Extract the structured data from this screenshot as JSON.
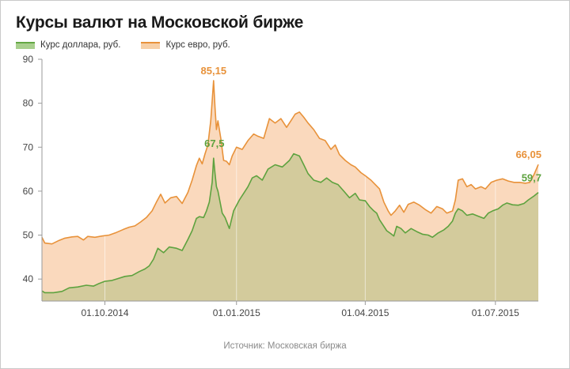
{
  "title": "Курсы валют на Московской бирже",
  "source": "Источник: Московская биржа",
  "colors": {
    "usd_line": "#5ea23f",
    "usd_fill": "#d3cb9c",
    "eur_line": "#e8923a",
    "eur_fill": "#fad9bd",
    "grid": "#e3e3e3",
    "axis": "#9a9a9a"
  },
  "chart_data": {
    "type": "area",
    "title": "Курсы валют на Московской бирже",
    "xlabel": "",
    "ylabel": "",
    "x_range": [
      "2014-08-18",
      "2015-07-31"
    ],
    "ylim": [
      35,
      90
    ],
    "y_ticks": [
      40,
      50,
      60,
      70,
      80,
      90
    ],
    "x_ticks": [
      {
        "date": "2014-10-01",
        "label": "01.10.2014"
      },
      {
        "date": "2015-01-01",
        "label": "01.01.2015"
      },
      {
        "date": "2015-04-01",
        "label": "01.04.2015"
      },
      {
        "date": "2015-07-01",
        "label": "01.07.2015"
      }
    ],
    "grid": "vertical",
    "legend": "top-left",
    "series": [
      {
        "name": "Курс доллара, руб.",
        "color": "#5ea23f",
        "points": [
          [
            "2014-08-18",
            37.3
          ],
          [
            "2014-08-20",
            36.9
          ],
          [
            "2014-08-26",
            36.9
          ],
          [
            "2014-09-01",
            37.2
          ],
          [
            "2014-09-06",
            38.0
          ],
          [
            "2014-09-12",
            38.2
          ],
          [
            "2014-09-18",
            38.6
          ],
          [
            "2014-09-23",
            38.4
          ],
          [
            "2014-09-27",
            39.0
          ],
          [
            "2014-10-01",
            39.5
          ],
          [
            "2014-10-06",
            39.7
          ],
          [
            "2014-10-10",
            40.1
          ],
          [
            "2014-10-15",
            40.6
          ],
          [
            "2014-10-20",
            40.8
          ],
          [
            "2014-10-25",
            41.7
          ],
          [
            "2014-10-29",
            42.3
          ],
          [
            "2014-11-01",
            43.0
          ],
          [
            "2014-11-04",
            44.5
          ],
          [
            "2014-11-07",
            47.0
          ],
          [
            "2014-11-11",
            46.0
          ],
          [
            "2014-11-15",
            47.3
          ],
          [
            "2014-11-20",
            47.0
          ],
          [
            "2014-11-24",
            46.5
          ],
          [
            "2014-11-28",
            49.0
          ],
          [
            "2014-12-01",
            51.0
          ],
          [
            "2014-12-04",
            53.8
          ],
          [
            "2014-12-06",
            54.2
          ],
          [
            "2014-12-09",
            54.0
          ],
          [
            "2014-12-11",
            55.5
          ],
          [
            "2014-12-13",
            57.5
          ],
          [
            "2014-12-15",
            62.0
          ],
          [
            "2014-12-16",
            67.5
          ],
          [
            "2014-12-17",
            64.0
          ],
          [
            "2014-12-18",
            61.0
          ],
          [
            "2014-12-19",
            60.0
          ],
          [
            "2014-12-22",
            55.0
          ],
          [
            "2014-12-24",
            54.0
          ],
          [
            "2014-12-27",
            51.5
          ],
          [
            "2014-12-30",
            55.5
          ],
          [
            "2015-01-03",
            58.0
          ],
          [
            "2015-01-06",
            59.5
          ],
          [
            "2015-01-09",
            61.0
          ],
          [
            "2015-01-12",
            63.0
          ],
          [
            "2015-01-15",
            63.5
          ],
          [
            "2015-01-19",
            62.5
          ],
          [
            "2015-01-23",
            65.0
          ],
          [
            "2015-01-28",
            66.0
          ],
          [
            "2015-02-02",
            65.5
          ],
          [
            "2015-02-07",
            67.0
          ],
          [
            "2015-02-10",
            68.5
          ],
          [
            "2015-02-14",
            68.0
          ],
          [
            "2015-02-17",
            66.0
          ],
          [
            "2015-02-20",
            64.0
          ],
          [
            "2015-02-24",
            62.5
          ],
          [
            "2015-03-01",
            62.0
          ],
          [
            "2015-03-05",
            63.0
          ],
          [
            "2015-03-09",
            62.0
          ],
          [
            "2015-03-13",
            61.5
          ],
          [
            "2015-03-17",
            60.0
          ],
          [
            "2015-03-21",
            58.5
          ],
          [
            "2015-03-25",
            59.5
          ],
          [
            "2015-03-28",
            58.0
          ],
          [
            "2015-04-01",
            57.8
          ],
          [
            "2015-04-04",
            56.5
          ],
          [
            "2015-04-07",
            55.5
          ],
          [
            "2015-04-09",
            55.0
          ],
          [
            "2015-04-11",
            53.5
          ],
          [
            "2015-04-13",
            52.5
          ],
          [
            "2015-04-16",
            51.0
          ],
          [
            "2015-04-19",
            50.3
          ],
          [
            "2015-04-21",
            49.8
          ],
          [
            "2015-04-23",
            52.0
          ],
          [
            "2015-04-26",
            51.5
          ],
          [
            "2015-04-29",
            50.5
          ],
          [
            "2015-05-03",
            51.5
          ],
          [
            "2015-05-07",
            50.8
          ],
          [
            "2015-05-11",
            50.2
          ],
          [
            "2015-05-15",
            50.0
          ],
          [
            "2015-05-18",
            49.5
          ],
          [
            "2015-05-22",
            50.5
          ],
          [
            "2015-05-26",
            51.2
          ],
          [
            "2015-05-29",
            52.0
          ],
          [
            "2015-06-01",
            53.2
          ],
          [
            "2015-06-03",
            55.0
          ],
          [
            "2015-06-05",
            56.0
          ],
          [
            "2015-06-08",
            55.5
          ],
          [
            "2015-06-11",
            54.5
          ],
          [
            "2015-06-15",
            54.8
          ],
          [
            "2015-06-19",
            54.3
          ],
          [
            "2015-06-23",
            53.8
          ],
          [
            "2015-06-26",
            55.0
          ],
          [
            "2015-06-29",
            55.5
          ],
          [
            "2015-07-03",
            56.0
          ],
          [
            "2015-07-06",
            56.8
          ],
          [
            "2015-07-09",
            57.3
          ],
          [
            "2015-07-13",
            56.9
          ],
          [
            "2015-07-17",
            56.8
          ],
          [
            "2015-07-21",
            57.2
          ],
          [
            "2015-07-24",
            58.0
          ],
          [
            "2015-07-28",
            58.9
          ],
          [
            "2015-07-31",
            59.7
          ]
        ]
      },
      {
        "name": "Курс евро, руб.",
        "color": "#e8923a",
        "points": [
          [
            "2014-08-18",
            49.5
          ],
          [
            "2014-08-20",
            48.2
          ],
          [
            "2014-08-25",
            48.0
          ],
          [
            "2014-08-30",
            48.8
          ],
          [
            "2014-09-03",
            49.3
          ],
          [
            "2014-09-08",
            49.6
          ],
          [
            "2014-09-12",
            49.7
          ],
          [
            "2014-09-16",
            48.9
          ],
          [
            "2014-09-19",
            49.7
          ],
          [
            "2014-09-24",
            49.5
          ],
          [
            "2014-09-29",
            49.8
          ],
          [
            "2014-10-04",
            50.0
          ],
          [
            "2014-10-09",
            50.6
          ],
          [
            "2014-10-14",
            51.3
          ],
          [
            "2014-10-18",
            51.8
          ],
          [
            "2014-10-22",
            52.1
          ],
          [
            "2014-10-26",
            53.0
          ],
          [
            "2014-10-30",
            54.0
          ],
          [
            "2014-11-03",
            55.5
          ],
          [
            "2014-11-06",
            57.5
          ],
          [
            "2014-11-09",
            59.3
          ],
          [
            "2014-11-12",
            57.3
          ],
          [
            "2014-11-16",
            58.5
          ],
          [
            "2014-11-20",
            58.8
          ],
          [
            "2014-11-24",
            57.2
          ],
          [
            "2014-11-28",
            59.7
          ],
          [
            "2014-12-01",
            62.5
          ],
          [
            "2014-12-04",
            65.8
          ],
          [
            "2014-12-06",
            67.5
          ],
          [
            "2014-12-08",
            66.2
          ],
          [
            "2014-12-10",
            68.5
          ],
          [
            "2014-12-12",
            70.5
          ],
          [
            "2014-12-14",
            76.0
          ],
          [
            "2014-12-15",
            80.5
          ],
          [
            "2014-12-16",
            85.15
          ],
          [
            "2014-12-17",
            79.0
          ],
          [
            "2014-12-18",
            74.0
          ],
          [
            "2014-12-19",
            76.0
          ],
          [
            "2014-12-21",
            72.0
          ],
          [
            "2014-12-23",
            67.0
          ],
          [
            "2014-12-25",
            66.8
          ],
          [
            "2014-12-27",
            66.0
          ],
          [
            "2014-12-29",
            68.0
          ],
          [
            "2015-01-01",
            70.0
          ],
          [
            "2015-01-05",
            69.5
          ],
          [
            "2015-01-09",
            71.5
          ],
          [
            "2015-01-13",
            73.0
          ],
          [
            "2015-01-16",
            72.5
          ],
          [
            "2015-01-20",
            72.0
          ],
          [
            "2015-01-24",
            76.5
          ],
          [
            "2015-01-28",
            75.5
          ],
          [
            "2015-02-01",
            76.5
          ],
          [
            "2015-02-05",
            74.5
          ],
          [
            "2015-02-08",
            76.0
          ],
          [
            "2015-02-11",
            77.5
          ],
          [
            "2015-02-14",
            78.0
          ],
          [
            "2015-02-17",
            76.8
          ],
          [
            "2015-02-20",
            75.5
          ],
          [
            "2015-02-24",
            74.0
          ],
          [
            "2015-02-28",
            72.0
          ],
          [
            "2015-03-04",
            71.5
          ],
          [
            "2015-03-08",
            69.5
          ],
          [
            "2015-03-11",
            70.5
          ],
          [
            "2015-03-14",
            68.3
          ],
          [
            "2015-03-18",
            67.0
          ],
          [
            "2015-03-22",
            66.0
          ],
          [
            "2015-03-25",
            65.5
          ],
          [
            "2015-03-29",
            64.2
          ],
          [
            "2015-04-01",
            63.5
          ],
          [
            "2015-04-05",
            62.5
          ],
          [
            "2015-04-08",
            61.5
          ],
          [
            "2015-04-11",
            60.5
          ],
          [
            "2015-04-14",
            57.5
          ],
          [
            "2015-04-17",
            55.5
          ],
          [
            "2015-04-19",
            54.5
          ],
          [
            "2015-04-22",
            55.5
          ],
          [
            "2015-04-25",
            56.8
          ],
          [
            "2015-04-28",
            55.2
          ],
          [
            "2015-05-01",
            57.0
          ],
          [
            "2015-05-05",
            57.5
          ],
          [
            "2015-05-09",
            56.8
          ],
          [
            "2015-05-13",
            55.8
          ],
          [
            "2015-05-17",
            55.0
          ],
          [
            "2015-05-21",
            56.5
          ],
          [
            "2015-05-25",
            56.0
          ],
          [
            "2015-05-28",
            55.0
          ],
          [
            "2015-06-01",
            55.5
          ],
          [
            "2015-06-03",
            58.0
          ],
          [
            "2015-06-05",
            62.5
          ],
          [
            "2015-06-08",
            62.8
          ],
          [
            "2015-06-11",
            61.0
          ],
          [
            "2015-06-14",
            61.5
          ],
          [
            "2015-06-17",
            60.5
          ],
          [
            "2015-06-21",
            61.0
          ],
          [
            "2015-06-24",
            60.5
          ],
          [
            "2015-06-28",
            62.0
          ],
          [
            "2015-07-02",
            62.5
          ],
          [
            "2015-07-06",
            62.8
          ],
          [
            "2015-07-10",
            62.3
          ],
          [
            "2015-07-14",
            62.0
          ],
          [
            "2015-07-18",
            62.0
          ],
          [
            "2015-07-22",
            61.8
          ],
          [
            "2015-07-25",
            62.0
          ],
          [
            "2015-07-28",
            63.8
          ],
          [
            "2015-07-31",
            66.05
          ]
        ]
      }
    ],
    "annotations": [
      {
        "series": 1,
        "date": "2014-12-16",
        "value": 85.15,
        "text": "85,15"
      },
      {
        "series": 0,
        "date": "2014-12-16",
        "value": 67.5,
        "text": "67,5"
      },
      {
        "series": 1,
        "date": "2015-07-31",
        "value": 66.05,
        "text": "66,05"
      },
      {
        "series": 0,
        "date": "2015-07-31",
        "value": 59.7,
        "text": "59,7"
      }
    ]
  }
}
